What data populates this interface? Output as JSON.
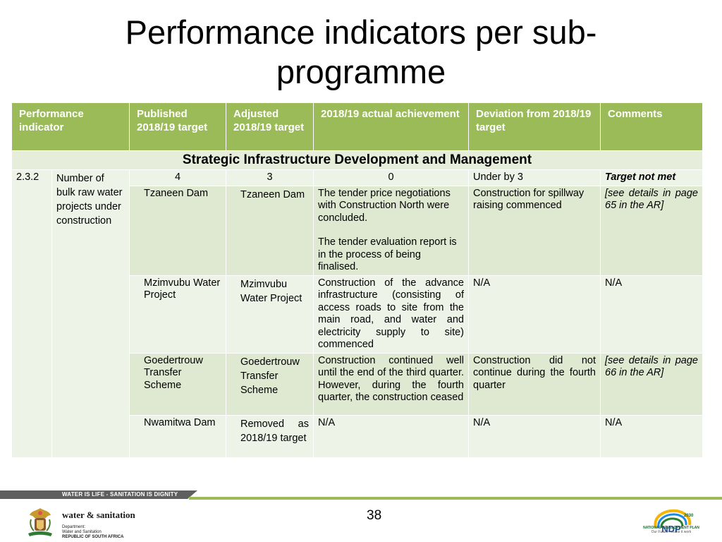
{
  "slide": {
    "title_line1": "Performance indicators per sub-",
    "title_line2": "programme",
    "page_number": "38"
  },
  "table": {
    "headers": {
      "indicator": "Performance indicator",
      "published": "Published 2018/19 target",
      "adjusted": "Adjusted 2018/19 target",
      "actual": "2018/19 actual achievement",
      "deviation": "Deviation from 2018/19 target",
      "comments": "Comments"
    },
    "section": "Strategic Infrastructure Development and Management",
    "indicator_number": "2.3.2",
    "indicator_name": "Number of bulk raw water projects under construction",
    "summary": {
      "published": "4",
      "adjusted": "3",
      "actual": "0",
      "deviation": "Under by 3",
      "comments": "Target not met"
    },
    "rows": [
      {
        "published": "Tzaneen Dam",
        "adjusted": "Tzaneen Dam",
        "actual_p1": "The tender price negotiations with Construction North were concluded.",
        "actual_p2": "The tender evaluation report is in the process of being finalised.",
        "deviation": "Construction for spillway raising commenced",
        "comments": "[see details in page 65 in the AR]"
      },
      {
        "published": "Mzimvubu Water Project",
        "adjusted": "Mzimvubu Water Project",
        "actual": "Construction of the advance infrastructure (consisting of access roads to site from the main road, and water and electricity supply to site) commenced",
        "deviation": "N/A",
        "comments": "N/A"
      },
      {
        "published": "Goedertrouw Transfer Scheme",
        "adjusted": "Goedertrouw Transfer Scheme",
        "actual": "Construction continued well until the end of the third quarter. However, during the fourth quarter, the construction ceased",
        "deviation": "Construction did not continue during the fourth quarter",
        "comments": "[see details in page 66 in the AR]"
      },
      {
        "published": "Nwamitwa Dam",
        "adjusted": "Removed as 2018/19 target",
        "actual": "N/A",
        "deviation": "N/A",
        "comments": "N/A"
      }
    ]
  },
  "footer": {
    "slogan": "WATER IS LIFE - SANITATION IS DIGNITY",
    "dept_name": "water & sanitation",
    "dept_line1": "Department:",
    "dept_line2": "Water and Sanitation",
    "dept_line3": "REPUBLIC OF SOUTH AFRICA",
    "ndp_line1": "NATIONAL DEVELOPMENT PLAN",
    "ndp_line2": "Our Future - make it work",
    "ndp_logo_text": "NDP",
    "ndp_year": "2030"
  },
  "colors": {
    "header_green": "#9bbb59",
    "row_light": "#eef3e8",
    "row_dark": "#dfe8d0"
  },
  "icons": {
    "crest": "coat-of-arms-icon",
    "ndp": "ndp-logo-icon"
  }
}
